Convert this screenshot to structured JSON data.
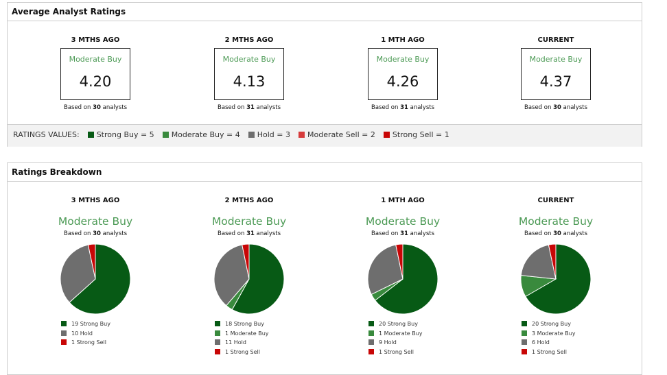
{
  "colors": {
    "strong_buy": "#075a15",
    "moderate_buy": "#398a3d",
    "hold": "#6e6e6e",
    "moderate_sell": "#d63c3c",
    "strong_sell": "#c80606"
  },
  "avg": {
    "title": "Average Analyst Ratings",
    "periods": [
      {
        "label": "3 MTHS AGO",
        "rating": "Moderate Buy",
        "value": "4.20",
        "based_pre": "Based on ",
        "count": "30",
        "based_post": " analysts"
      },
      {
        "label": "2 MTHS AGO",
        "rating": "Moderate Buy",
        "value": "4.13",
        "based_pre": "Based on ",
        "count": "31",
        "based_post": " analysts"
      },
      {
        "label": "1 MTH AGO",
        "rating": "Moderate Buy",
        "value": "4.26",
        "based_pre": "Based on ",
        "count": "31",
        "based_post": " analysts"
      },
      {
        "label": "CURRENT",
        "rating": "Moderate Buy",
        "value": "4.37",
        "based_pre": "Based on ",
        "count": "30",
        "based_post": " analysts"
      }
    ],
    "legend_label": "RATINGS VALUES:",
    "legend": [
      {
        "text": "Strong Buy = 5",
        "key": "strong_buy"
      },
      {
        "text": "Moderate Buy = 4",
        "key": "moderate_buy"
      },
      {
        "text": "Hold = 3",
        "key": "hold"
      },
      {
        "text": "Moderate Sell = 2",
        "key": "moderate_sell"
      },
      {
        "text": "Strong Sell = 1",
        "key": "strong_sell"
      }
    ]
  },
  "breakdown": {
    "title": "Ratings Breakdown"
  },
  "chart_data": [
    {
      "type": "pie",
      "label": "3 MTHS AGO",
      "rating": "Moderate Buy",
      "count": "30",
      "slices": [
        {
          "key": "strong_buy",
          "value": 19,
          "text": "19 Strong Buy"
        },
        {
          "key": "hold",
          "value": 10,
          "text": "10 Hold"
        },
        {
          "key": "strong_sell",
          "value": 1,
          "text": "1 Strong Sell"
        }
      ]
    },
    {
      "type": "pie",
      "label": "2 MTHS AGO",
      "rating": "Moderate Buy",
      "count": "31",
      "slices": [
        {
          "key": "strong_buy",
          "value": 18,
          "text": "18 Strong Buy"
        },
        {
          "key": "moderate_buy",
          "value": 1,
          "text": "1 Moderate Buy"
        },
        {
          "key": "hold",
          "value": 11,
          "text": "11 Hold"
        },
        {
          "key": "strong_sell",
          "value": 1,
          "text": "1 Strong Sell"
        }
      ]
    },
    {
      "type": "pie",
      "label": "1 MTH AGO",
      "rating": "Moderate Buy",
      "count": "31",
      "slices": [
        {
          "key": "strong_buy",
          "value": 20,
          "text": "20 Strong Buy"
        },
        {
          "key": "moderate_buy",
          "value": 1,
          "text": "1 Moderate Buy"
        },
        {
          "key": "hold",
          "value": 9,
          "text": "9 Hold"
        },
        {
          "key": "strong_sell",
          "value": 1,
          "text": "1 Strong Sell"
        }
      ]
    },
    {
      "type": "pie",
      "label": "CURRENT",
      "rating": "Moderate Buy",
      "count": "30",
      "slices": [
        {
          "key": "strong_buy",
          "value": 20,
          "text": "20 Strong Buy"
        },
        {
          "key": "moderate_buy",
          "value": 3,
          "text": "3 Moderate Buy"
        },
        {
          "key": "hold",
          "value": 6,
          "text": "6 Hold"
        },
        {
          "key": "strong_sell",
          "value": 1,
          "text": "1 Strong Sell"
        }
      ]
    }
  ]
}
